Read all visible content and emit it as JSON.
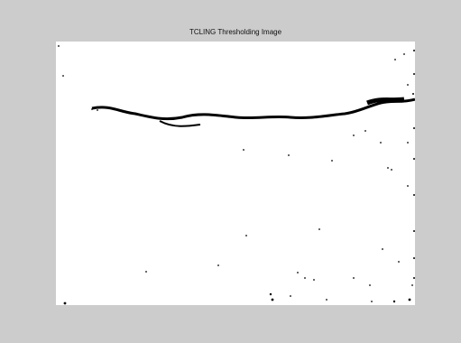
{
  "figure": {
    "title": "TCLING Thresholding Image"
  },
  "image": {
    "content": "binary-threshold-image",
    "foreground_color": "#000000",
    "background_color": "#ffffff"
  },
  "colors": {
    "window_background": "#cccccc"
  }
}
